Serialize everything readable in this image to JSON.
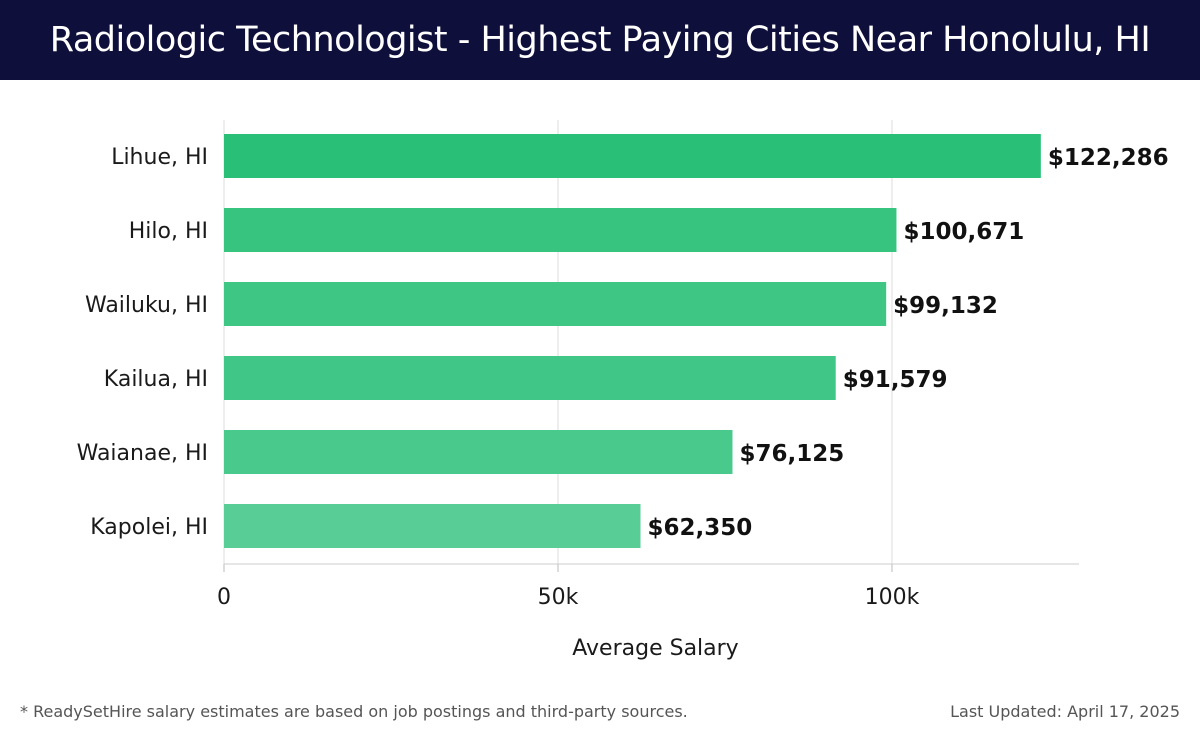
{
  "header": {
    "title": "Radiologic Technologist - Highest Paying Cities Near Honolulu, HI"
  },
  "chart_data": {
    "type": "bar",
    "orientation": "horizontal",
    "title": "Radiologic Technologist - Highest Paying Cities Near Honolulu, HI",
    "categories": [
      "Lihue, HI",
      "Hilo, HI",
      "Wailuku, HI",
      "Kailua, HI",
      "Waianae, HI",
      "Kapolei, HI"
    ],
    "values": [
      122286,
      100671,
      99132,
      91579,
      76125,
      62350
    ],
    "value_labels": [
      "$122,286",
      "$100,671",
      "$99,132",
      "$91,579",
      "$76,125",
      "$62,350"
    ],
    "xlabel": "Average Salary",
    "ylabel": "",
    "xlim": [
      0,
      128000
    ],
    "x_ticks": [
      0,
      50000,
      100000
    ],
    "x_tick_labels": [
      "0",
      "50k",
      "100k"
    ],
    "grid": "vertical",
    "bar_colors": [
      "#2abf76",
      "#36c47e",
      "#3ec684",
      "#40c686",
      "#4ac98c",
      "#58cd96"
    ]
  },
  "footer": {
    "note": "* ReadySetHire salary estimates are based on job postings and third-party sources.",
    "updated": "Last Updated: April 17, 2025"
  }
}
